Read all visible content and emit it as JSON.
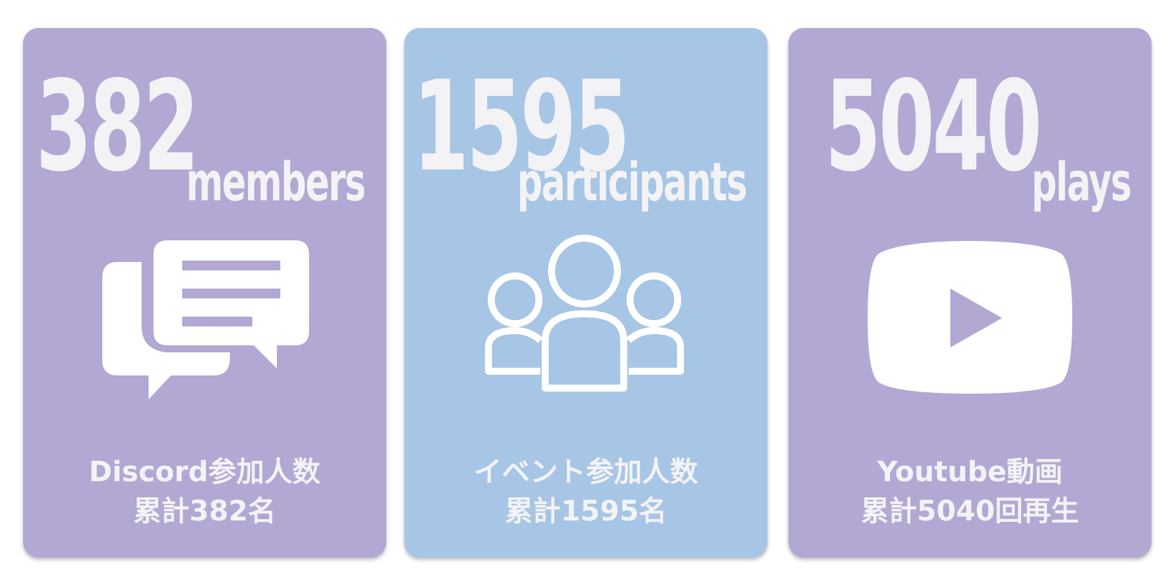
{
  "colors": {
    "purple_card": "#b2a8d3",
    "blue_card": "#a7c5e5",
    "text_light": "#f3f3f5",
    "icon_white": "#ffffff"
  },
  "cards": [
    {
      "number": "382",
      "unit": "members",
      "icon": "chat-bubbles-icon",
      "caption_line1": "Discord参加人数",
      "caption_line2": "累計382名"
    },
    {
      "number": "1595",
      "unit": "participants",
      "icon": "people-group-icon",
      "caption_line1": "イベント参加人数",
      "caption_line2": "累計1595名"
    },
    {
      "number": "5040",
      "unit": "plays",
      "icon": "youtube-play-icon",
      "caption_line1": "Youtube動画",
      "caption_line2": "累計5040回再生"
    }
  ]
}
